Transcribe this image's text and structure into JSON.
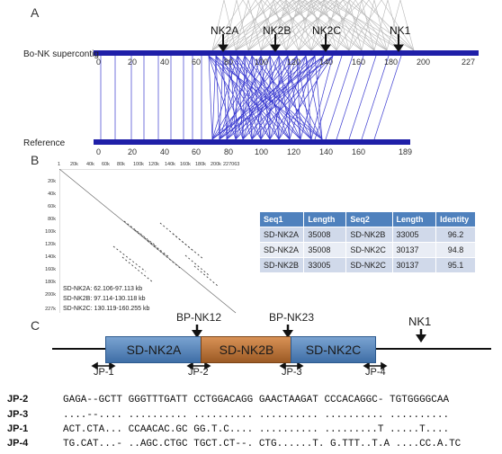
{
  "panel_a": {
    "letter": "A",
    "top_label": "Bo-NK supercontig",
    "bottom_label": "Reference",
    "top_ticks": [
      "0",
      "20",
      "40",
      "60",
      "80",
      "100",
      "120",
      "140",
      "160",
      "180",
      "200",
      "227"
    ],
    "bottom_ticks": [
      "0",
      "20",
      "40",
      "60",
      "80",
      "100",
      "120",
      "140",
      "160",
      "189"
    ],
    "markers": [
      "NK2A",
      "NK2B",
      "NK2C",
      "NK1"
    ]
  },
  "panel_b": {
    "letter": "B",
    "x_ticks": [
      "1",
      "20k",
      "40k",
      "60k",
      "80k",
      "100k",
      "120k",
      "140k",
      "160k",
      "180k",
      "200k",
      "227063"
    ],
    "y_ticks": [
      "20k",
      "40k",
      "60k",
      "80k",
      "100k",
      "120k",
      "140k",
      "160k",
      "180k",
      "200k",
      "227k"
    ],
    "info": [
      "SD-NK2A: 62.106-97.113 kb",
      "SD-NK2B: 97.114-130.118 kb",
      "SD-NK2C: 130.119-160.255 kb"
    ],
    "table": {
      "headers": [
        "Seq1",
        "Length",
        "Seq2",
        "Length",
        "Identity"
      ],
      "rows": [
        [
          "SD-NK2A",
          "35008",
          "SD-NK2B",
          "33005",
          "96.2"
        ],
        [
          "SD-NK2A",
          "35008",
          "SD-NK2C",
          "30137",
          "94.8"
        ],
        [
          "SD-NK2B",
          "33005",
          "SD-NK2C",
          "30137",
          "95.1"
        ]
      ]
    }
  },
  "panel_c": {
    "letter": "C",
    "bp1": "BP-NK12",
    "bp2": "BP-NK23",
    "nk1": "NK1",
    "segments": [
      "SD-NK2A",
      "SD-NK2B",
      "SD-NK2C"
    ],
    "junctions": [
      "JP-1",
      "JP-2",
      "JP-3",
      "JP-4"
    ],
    "colors": {
      "blue_segment": "#4f7fb5",
      "orange_segment": "#b8733a",
      "bar": "#1f1fa8"
    }
  },
  "alignment": [
    {
      "name": "JP-2",
      "seq": "GAGA--GCTT GGGTTTGATT CCTGGACAGG GAACTAAGAT CCCACAGGC- TGTGGGGCAA"
    },
    {
      "name": "JP-3",
      "seq": "....--.... .......... .......... .......... .......... .........."
    },
    {
      "name": "JP-1",
      "seq": "ACT.CTA... CCAACAC.GC GG.T.C.... .......... .........T .....T...."
    },
    {
      "name": "JP-4",
      "seq": "TG.CAT...- ..AGC.CTGC TGCT.CT--. CTG......T. G.TTT..T.A ....CC.A.TC"
    }
  ]
}
